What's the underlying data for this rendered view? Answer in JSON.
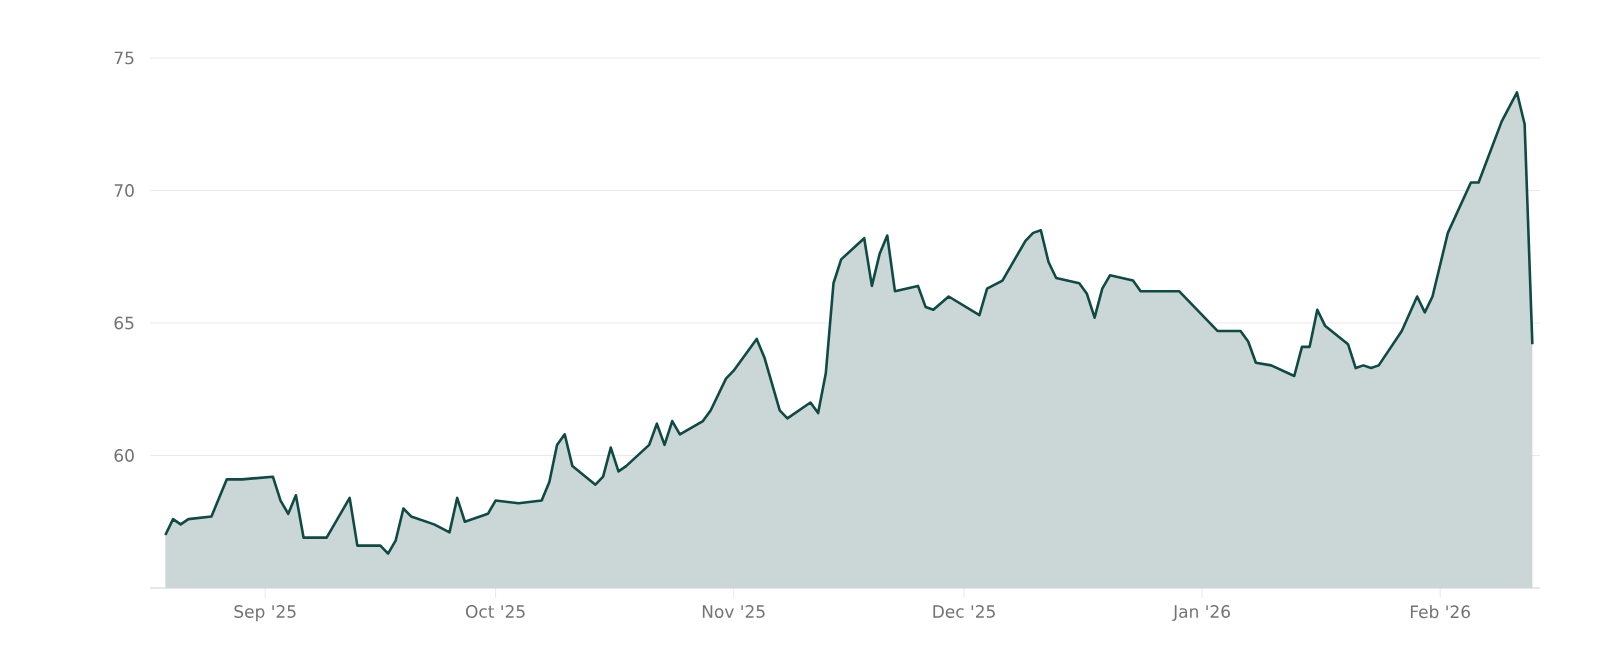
{
  "chart_data": {
    "type": "area",
    "color": "#0f4a45",
    "x": [
      "2025-08-19",
      "2025-08-20",
      "2025-08-21",
      "2025-08-22",
      "2025-08-25",
      "2025-08-27",
      "2025-08-29",
      "2025-09-02",
      "2025-09-03",
      "2025-09-04",
      "2025-09-05",
      "2025-09-06",
      "2025-09-09",
      "2025-09-11",
      "2025-09-12",
      "2025-09-13",
      "2025-09-16",
      "2025-09-17",
      "2025-09-18",
      "2025-09-19",
      "2025-09-20",
      "2025-09-23",
      "2025-09-25",
      "2025-09-26",
      "2025-09-27",
      "2025-09-30",
      "2025-10-01",
      "2025-10-04",
      "2025-10-07",
      "2025-10-08",
      "2025-10-09",
      "2025-10-10",
      "2025-10-11",
      "2025-10-14",
      "2025-10-15",
      "2025-10-16",
      "2025-10-17",
      "2025-10-18",
      "2025-10-21",
      "2025-10-22",
      "2025-10-23",
      "2025-10-24",
      "2025-10-25",
      "2025-10-28",
      "2025-10-29",
      "2025-10-31",
      "2025-11-01",
      "2025-11-04",
      "2025-11-05",
      "2025-11-07",
      "2025-11-08",
      "2025-11-11",
      "2025-11-12",
      "2025-11-13",
      "2025-11-14",
      "2025-11-15",
      "2025-11-18",
      "2025-11-19",
      "2025-11-20",
      "2025-11-21",
      "2025-11-22",
      "2025-11-25",
      "2025-11-26",
      "2025-11-27",
      "2025-11-29",
      "2025-12-03",
      "2025-12-04",
      "2025-12-06",
      "2025-12-09",
      "2025-12-10",
      "2025-12-11",
      "2025-12-12",
      "2025-12-13",
      "2025-12-16",
      "2025-12-17",
      "2025-12-18",
      "2025-12-19",
      "2025-12-20",
      "2025-12-23",
      "2025-12-24",
      "2025-12-29",
      "2026-01-03",
      "2026-01-06",
      "2026-01-07",
      "2026-01-08",
      "2026-01-10",
      "2026-01-13",
      "2026-01-14",
      "2026-01-15",
      "2026-01-16",
      "2026-01-17",
      "2026-01-20",
      "2026-01-21",
      "2026-01-22",
      "2026-01-23",
      "2026-01-24",
      "2026-01-27",
      "2026-01-29",
      "2026-01-30",
      "2026-01-31",
      "2026-02-02",
      "2026-02-05",
      "2026-02-06",
      "2026-02-09",
      "2026-02-11",
      "2026-02-12",
      "2026-02-13"
    ],
    "values": [
      57.0,
      57.6,
      57.4,
      57.6,
      57.7,
      59.1,
      59.1,
      59.2,
      58.3,
      57.8,
      58.5,
      56.9,
      56.9,
      57.9,
      58.4,
      56.6,
      56.6,
      56.3,
      56.8,
      58.0,
      57.7,
      57.4,
      57.1,
      58.4,
      57.5,
      57.8,
      58.3,
      58.2,
      58.3,
      59.0,
      60.4,
      60.8,
      59.6,
      58.9,
      59.2,
      60.3,
      59.4,
      59.6,
      60.4,
      61.2,
      60.4,
      61.3,
      60.8,
      61.3,
      61.7,
      62.9,
      63.2,
      64.4,
      63.7,
      61.7,
      61.4,
      62.0,
      61.6,
      63.1,
      66.5,
      67.4,
      68.2,
      66.4,
      67.6,
      68.3,
      66.2,
      66.4,
      65.6,
      65.5,
      66.0,
      65.3,
      66.3,
      66.6,
      68.1,
      68.4,
      68.5,
      67.3,
      66.7,
      66.5,
      66.1,
      65.2,
      66.3,
      66.8,
      66.6,
      66.2,
      66.2,
      64.7,
      64.7,
      64.3,
      63.5,
      63.4,
      63.0,
      64.1,
      64.1,
      65.5,
      64.9,
      64.2,
      63.3,
      63.4,
      63.3,
      63.4,
      64.7,
      66.0,
      65.4,
      66.0,
      68.4,
      70.3,
      70.3,
      72.6,
      73.7,
      72.5,
      64.2
    ],
    "xlim": [
      "2025-08-17",
      "2026-02-14"
    ],
    "xticks": [
      {
        "value": "2025-09-01",
        "label": "Sep '25"
      },
      {
        "value": "2025-10-01",
        "label": "Oct '25"
      },
      {
        "value": "2025-11-01",
        "label": "Nov '25"
      },
      {
        "value": "2025-12-01",
        "label": "Dec '25"
      },
      {
        "value": "2026-01-01",
        "label": "Jan '26"
      },
      {
        "value": "2026-02-01",
        "label": "Feb '26"
      }
    ],
    "ylim": [
      55,
      75
    ],
    "yticks": [
      60,
      65,
      70,
      75
    ],
    "grid": "y"
  }
}
